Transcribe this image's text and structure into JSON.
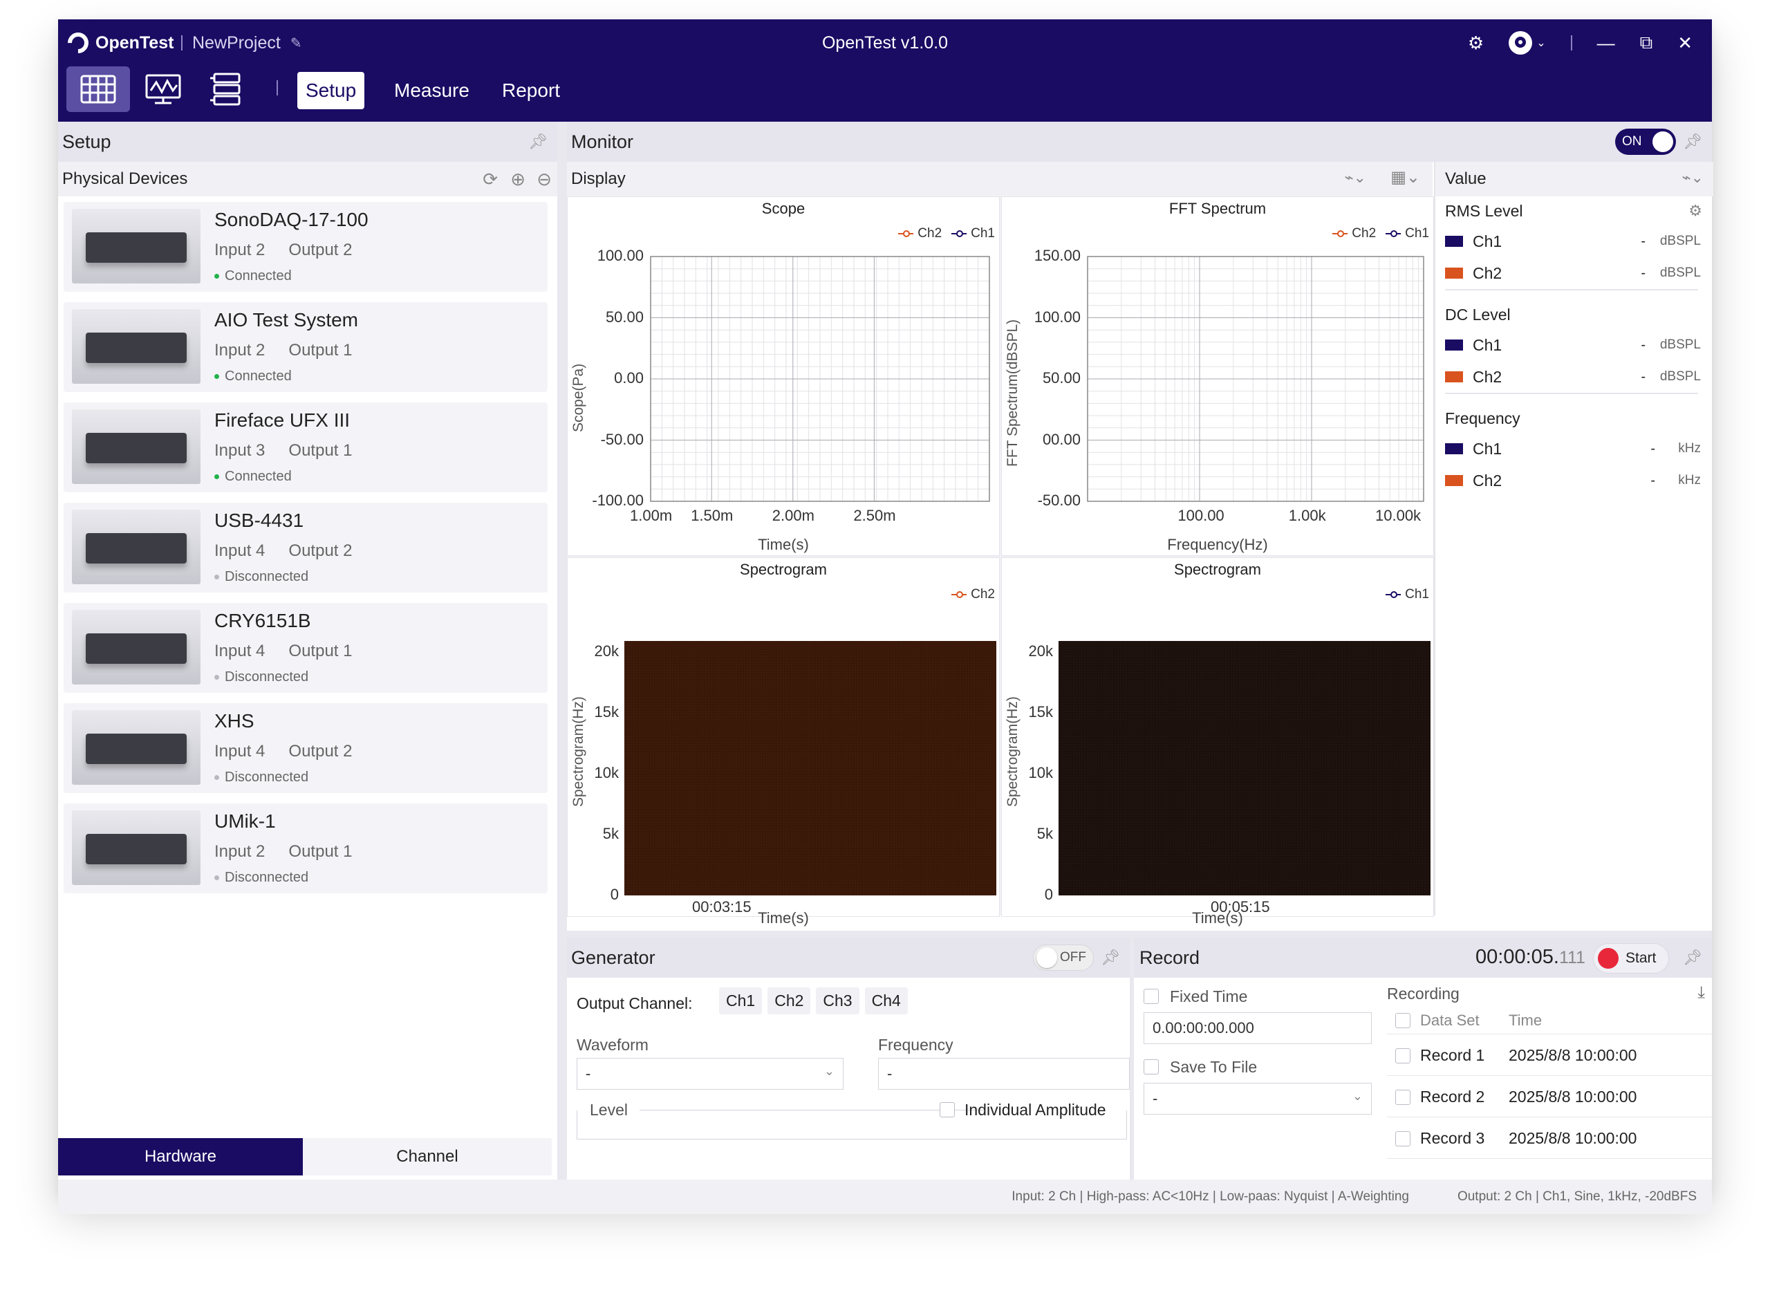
{
  "app": {
    "name": "OpenTest",
    "project": "NewProject",
    "title": "OpenTest v1.0.0"
  },
  "nav": {
    "tabs": [
      "Setup",
      "Measure",
      "Report"
    ],
    "active": "Setup"
  },
  "colors": {
    "ch1": "#1a0b63",
    "ch2": "#d9531e",
    "accent": "#1a0b63",
    "connected": "#21b24b",
    "disconnected": "#b8b8c0"
  },
  "setup": {
    "title": "Setup",
    "subtitle": "Physical Devices",
    "devices": [
      {
        "name": "SonoDAQ-17-100",
        "input": "Input 2",
        "output": "Output 2",
        "status": "Connected"
      },
      {
        "name": "AIO Test System",
        "input": "Input 2",
        "output": "Output 1",
        "status": "Connected"
      },
      {
        "name": "Fireface UFX III",
        "input": "Input 3",
        "output": "Output 1",
        "status": "Connected"
      },
      {
        "name": "USB-4431",
        "input": "Input 4",
        "output": "Output 2",
        "status": "Disconnected"
      },
      {
        "name": "CRY6151B",
        "input": "Input 4",
        "output": "Output 1",
        "status": "Disconnected"
      },
      {
        "name": "XHS",
        "input": "Input 4",
        "output": "Output 2",
        "status": "Disconnected"
      },
      {
        "name": "UMik-1",
        "input": "Input 2",
        "output": "Output 1",
        "status": "Disconnected"
      }
    ],
    "bottom_tabs": {
      "hardware": "Hardware",
      "channel": "Channel"
    }
  },
  "monitor": {
    "title": "Monitor",
    "toggle": "ON",
    "display": "Display"
  },
  "chart_data": [
    {
      "type": "line",
      "title": "Scope",
      "legend": [
        "Ch2",
        "Ch1"
      ],
      "ylabel": "Scope(Pa)",
      "xlabel": "Time(s)",
      "yticks": [
        "100.00",
        "50.00",
        "0.00",
        "-50.00",
        "-100.00"
      ],
      "xticks": [
        "1.00m",
        "1.50m",
        "2.00m",
        "2.50m"
      ],
      "ylim": [
        -100,
        100
      ],
      "series": []
    },
    {
      "type": "line",
      "title": "FFT Spectrum",
      "legend": [
        "Ch2",
        "Ch1"
      ],
      "ylabel": "FFT Spectrum(dBSPL)",
      "xlabel": "Frequency(Hz)",
      "yticks": [
        "150.00",
        "100.00",
        "50.00",
        "00.00",
        "-50.00"
      ],
      "xticks": [
        "100.00",
        "1.00k",
        "10.00k"
      ],
      "ylim": [
        -50,
        150
      ],
      "xscale": "log",
      "series": []
    },
    {
      "type": "heatmap",
      "title": "Spectrogram",
      "legend": [
        "Ch2"
      ],
      "ylabel": "Spectrogram(Hz)",
      "xlabel": "Time(s)",
      "yticks": [
        "20k",
        "15k",
        "10k",
        "5k",
        "0"
      ],
      "xticks": [
        "00:03:15"
      ],
      "fill": "#3a1808"
    },
    {
      "type": "heatmap",
      "title": "Spectrogram",
      "legend": [
        "Ch1"
      ],
      "ylabel": "Spectrogram(Hz)",
      "xlabel": "Time(s)",
      "yticks": [
        "20k",
        "15k",
        "10k",
        "5k",
        "0"
      ],
      "xticks": [
        "00:05:15"
      ],
      "fill": "#1c100c"
    }
  ],
  "value": {
    "title": "Value",
    "groups": [
      {
        "name": "RMS Level",
        "rows": [
          {
            "ch": "Ch1",
            "val": "-",
            "unit": "dBSPL"
          },
          {
            "ch": "Ch2",
            "val": "-",
            "unit": "dBSPL"
          }
        ]
      },
      {
        "name": "DC Level",
        "rows": [
          {
            "ch": "Ch1",
            "val": "-",
            "unit": "dBSPL"
          },
          {
            "ch": "Ch2",
            "val": "-",
            "unit": "dBSPL"
          }
        ]
      },
      {
        "name": "Frequency",
        "rows": [
          {
            "ch": "Ch1",
            "val": "-",
            "unit": "kHz"
          },
          {
            "ch": "Ch2",
            "val": "-",
            "unit": "kHz"
          }
        ]
      }
    ]
  },
  "generator": {
    "title": "Generator",
    "toggle": "OFF",
    "output_channel_label": "Output Channel:",
    "channels": [
      "Ch1",
      "Ch2",
      "Ch3",
      "Ch4"
    ],
    "waveform_label": "Waveform",
    "waveform_value": "-",
    "frequency_label": "Frequency",
    "frequency_value": "-",
    "level_label": "Level",
    "individual_amplitude": "Individual Amplitude"
  },
  "record": {
    "title": "Record",
    "time_main": "00:00:05.",
    "time_ms": "111",
    "start": "Start",
    "fixed_time": "Fixed Time",
    "fixed_time_value": "0.00:00:00.000",
    "save_to_file": "Save To File",
    "save_value": "-",
    "recording_label": "Recording",
    "table_headers": [
      "Data Set",
      "Time"
    ],
    "rows": [
      {
        "name": "Record 1",
        "time": "2025/8/8 10:00:00"
      },
      {
        "name": "Record 2",
        "time": "2025/8/8 10:00:00"
      },
      {
        "name": "Record 3",
        "time": "2025/8/8 10:00:00"
      }
    ]
  },
  "status": {
    "input": "Input: 2 Ch | High-pass: AC<10Hz | Low-paas: Nyquist | A-Weighting",
    "output": "Output: 2 Ch | Ch1, Sine, 1kHz, -20dBFS"
  }
}
